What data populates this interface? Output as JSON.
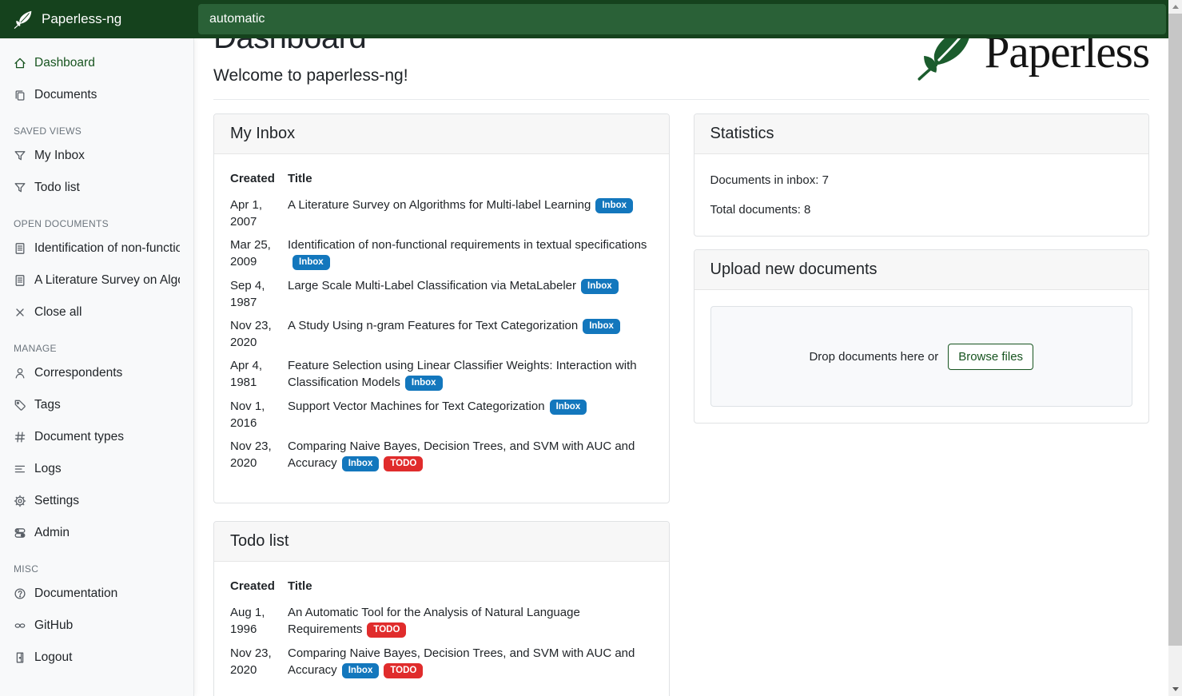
{
  "navbar": {
    "brand": "Paperless-ng",
    "search_value": "automatic"
  },
  "sidebar": {
    "sections": [
      {
        "title": "",
        "items": [
          {
            "label": "Dashboard",
            "icon": "home-icon",
            "active": true
          },
          {
            "label": "Documents",
            "icon": "copy-icon"
          }
        ]
      },
      {
        "title": "SAVED VIEWS",
        "items": [
          {
            "label": "My Inbox",
            "icon": "filter-icon"
          },
          {
            "label": "Todo list",
            "icon": "filter-icon"
          }
        ]
      },
      {
        "title": "OPEN DOCUMENTS",
        "items": [
          {
            "label": "Identification of non-functio…",
            "icon": "file-text-icon"
          },
          {
            "label": "A Literature Survey on Algori…",
            "icon": "file-text-icon"
          },
          {
            "label": "Close all",
            "icon": "close-icon"
          }
        ]
      },
      {
        "title": "MANAGE",
        "items": [
          {
            "label": "Correspondents",
            "icon": "person-icon"
          },
          {
            "label": "Tags",
            "icon": "tag-icon"
          },
          {
            "label": "Document types",
            "icon": "hash-icon"
          },
          {
            "label": "Logs",
            "icon": "list-icon"
          },
          {
            "label": "Settings",
            "icon": "gear-icon"
          },
          {
            "label": "Admin",
            "icon": "toggles-icon"
          }
        ]
      },
      {
        "title": "MISC",
        "items": [
          {
            "label": "Documentation",
            "icon": "help-icon"
          },
          {
            "label": "GitHub",
            "icon": "link-icon"
          },
          {
            "label": "Logout",
            "icon": "door-icon"
          }
        ]
      }
    ]
  },
  "main": {
    "title": "Dashboard",
    "subtitle": "Welcome to paperless-ng!",
    "logo_text": "Paperless",
    "tags_def": {
      "inbox": {
        "label": "Inbox",
        "color": "#1377bd"
      },
      "todo": {
        "label": "TODO",
        "color": "#e02c2c"
      }
    },
    "widgets": {
      "inbox": {
        "title": "My Inbox",
        "columns": [
          "Created",
          "Title"
        ],
        "rows": [
          {
            "created": "Apr 1, 2007",
            "title": "A Literature Survey on Algorithms for Multi-label Learning",
            "tags": [
              "inbox"
            ]
          },
          {
            "created": "Mar 25, 2009",
            "title": "Identification of non-functional requirements in textual specifications",
            "tags": [
              "inbox"
            ]
          },
          {
            "created": "Sep 4, 1987",
            "title": "Large Scale Multi-Label Classification via MetaLabeler",
            "tags": [
              "inbox"
            ]
          },
          {
            "created": "Nov 23, 2020",
            "title": "A Study Using n-gram Features for Text Categorization",
            "tags": [
              "inbox"
            ]
          },
          {
            "created": "Apr 4, 1981",
            "title": "Feature Selection using Linear Classifier Weights: Interaction with Classification Models",
            "tags": [
              "inbox"
            ]
          },
          {
            "created": "Nov 1, 2016",
            "title": "Support Vector Machines for Text Categorization",
            "tags": [
              "inbox"
            ]
          },
          {
            "created": "Nov 23, 2020",
            "title": "Comparing Naive Bayes, Decision Trees, and SVM with AUC and Accuracy",
            "tags": [
              "inbox",
              "todo"
            ]
          }
        ]
      },
      "todo": {
        "title": "Todo list",
        "columns": [
          "Created",
          "Title"
        ],
        "rows": [
          {
            "created": "Aug 1, 1996",
            "title": "An Automatic Tool for the Analysis of Natural Language Requirements",
            "tags": [
              "todo"
            ]
          },
          {
            "created": "Nov 23, 2020",
            "title": "Comparing Naive Bayes, Decision Trees, and SVM with AUC and Accuracy",
            "tags": [
              "inbox",
              "todo"
            ]
          }
        ]
      },
      "statistics": {
        "title": "Statistics",
        "lines": [
          "Documents in inbox: 7",
          "Total documents: 8"
        ]
      },
      "upload": {
        "title": "Upload new documents",
        "drop_text": "Drop documents here or",
        "browse_label": "Browse files"
      }
    }
  },
  "colors": {
    "navbar_green": "#15421d",
    "search_green": "#2a6137",
    "primary_green": "#17541f",
    "badge_inbox": "#1377bd",
    "badge_todo": "#e02c2c"
  }
}
